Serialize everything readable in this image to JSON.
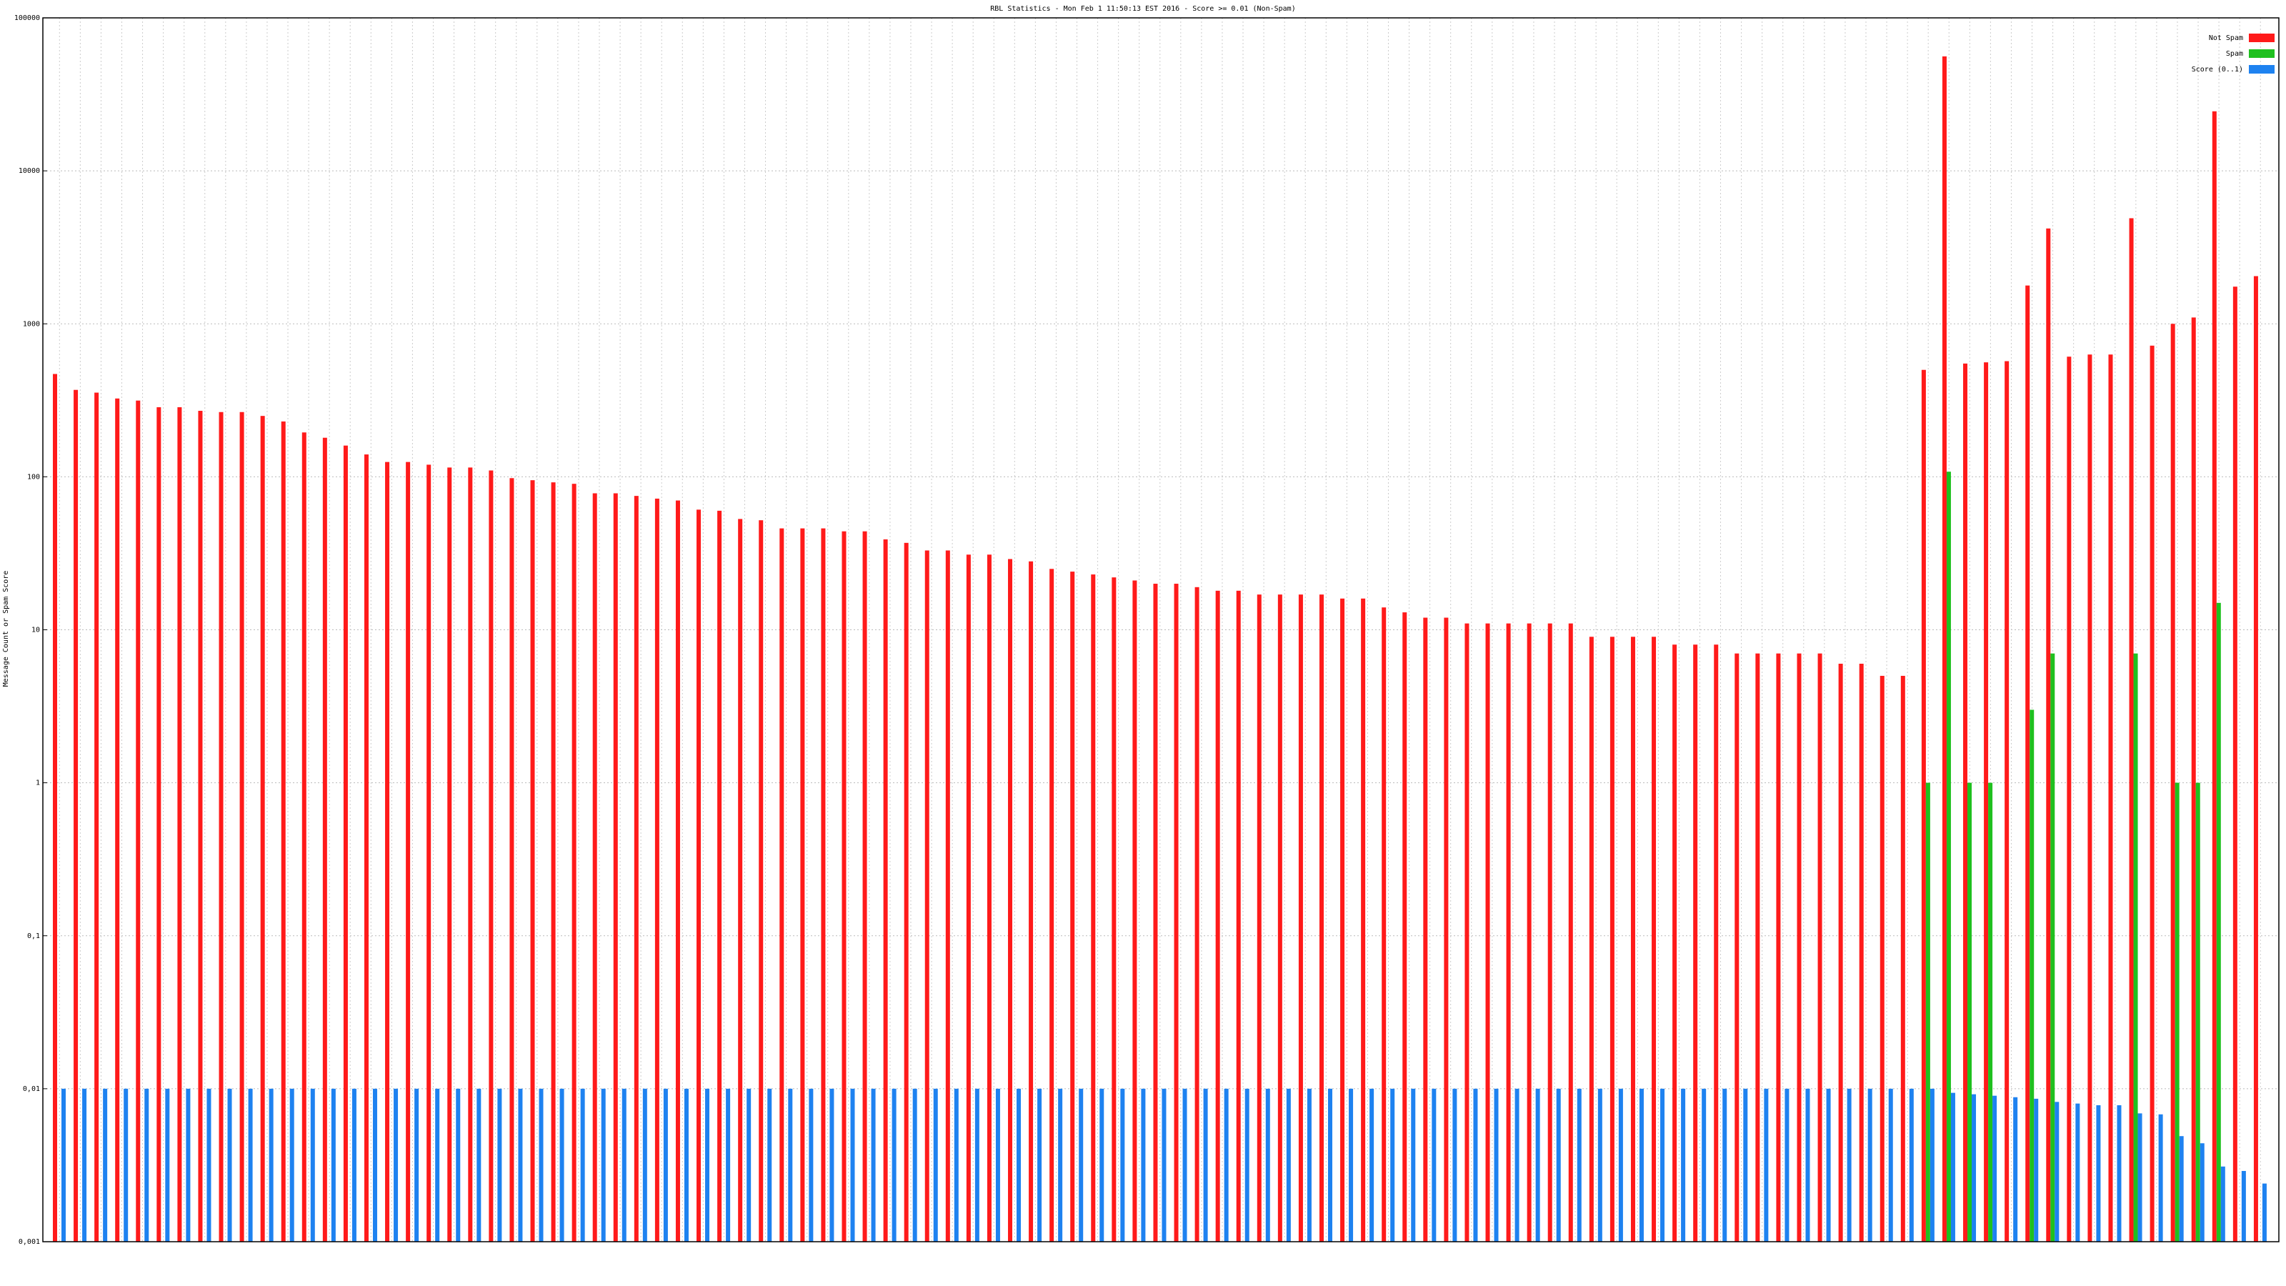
{
  "chart_data": {
    "type": "bar",
    "title": "RBL Statistics - Mon Feb  1 11:50:13 EST 2016 - Score >= 0.01 (Non-Spam)",
    "y_label": "Message Count or Spam Score",
    "log_scale": true,
    "grid": true,
    "legend": "top-right",
    "categories": [
      null,
      null,
      null,
      null,
      null,
      null,
      null,
      null,
      null,
      null,
      null,
      null,
      null,
      null,
      null,
      null,
      null,
      null,
      null,
      null,
      null,
      null,
      null,
      null,
      null,
      null,
      null,
      null,
      null,
      null,
      null,
      null,
      null,
      null,
      null,
      null,
      null,
      null,
      null,
      null,
      null,
      null,
      null,
      null,
      null,
      null,
      null,
      null,
      null,
      null,
      null,
      null,
      null,
      null,
      null,
      null,
      null,
      null,
      null,
      null,
      null,
      null,
      null,
      null,
      null,
      null,
      null,
      null,
      null,
      null,
      null,
      null,
      null,
      null,
      null,
      null,
      null,
      null,
      null,
      null,
      null,
      null,
      null,
      null,
      null,
      null,
      null,
      null,
      null,
      null,
      null,
      null,
      null,
      null,
      null,
      null,
      null,
      null,
      null,
      null,
      null,
      null,
      null,
      null,
      null,
      null,
      null
    ],
    "series": [
      {
        "name": "Not Spam",
        "color": "#ff1a1a",
        "values": [
          470,
          370,
          355,
          325,
          315,
          285,
          285,
          270,
          265,
          265,
          250,
          230,
          195,
          180,
          160,
          140,
          125,
          125,
          120,
          115,
          115,
          110,
          98,
          95,
          92,
          90,
          78,
          78,
          75,
          72,
          70,
          61,
          60,
          53,
          52,
          46,
          46,
          46,
          44,
          44,
          39,
          37,
          33,
          33,
          31,
          31,
          29,
          28,
          25,
          24,
          23,
          22,
          21,
          20,
          20,
          19,
          18,
          18,
          17,
          17,
          17,
          17,
          16,
          16,
          14,
          13,
          12,
          12,
          11,
          11,
          11,
          11,
          11,
          11,
          9,
          9,
          9,
          9,
          8,
          8,
          8,
          7,
          7,
          7,
          7,
          7,
          6,
          6,
          5,
          5,
          500,
          56000,
          550,
          560,
          570,
          1780,
          4200,
          610,
          630,
          630,
          4900,
          720,
          1000,
          1100,
          24500,
          1750,
          2050
        ]
      },
      {
        "name": "Spam",
        "color": "#1fc01f",
        "values": [
          null,
          null,
          null,
          null,
          null,
          null,
          null,
          null,
          null,
          null,
          null,
          null,
          null,
          null,
          null,
          null,
          null,
          null,
          null,
          null,
          null,
          null,
          null,
          null,
          null,
          null,
          null,
          null,
          null,
          null,
          null,
          null,
          null,
          null,
          null,
          null,
          null,
          null,
          null,
          null,
          null,
          null,
          null,
          null,
          null,
          null,
          null,
          null,
          null,
          null,
          null,
          null,
          null,
          null,
          null,
          null,
          null,
          null,
          null,
          null,
          null,
          null,
          null,
          null,
          null,
          null,
          null,
          null,
          null,
          null,
          null,
          null,
          null,
          null,
          null,
          null,
          null,
          null,
          null,
          null,
          null,
          null,
          null,
          null,
          null,
          null,
          null,
          null,
          null,
          null,
          1,
          108,
          1,
          1,
          null,
          3,
          7,
          null,
          null,
          null,
          7,
          null,
          1,
          1,
          15,
          null,
          null
        ]
      },
      {
        "name": "Score (0..1)",
        "color": "#1e82f0",
        "values": [
          0.01,
          0.01,
          0.01,
          0.01,
          0.01,
          0.01,
          0.01,
          0.01,
          0.01,
          0.01,
          0.01,
          0.01,
          0.01,
          0.01,
          0.01,
          0.01,
          0.01,
          0.01,
          0.01,
          0.01,
          0.01,
          0.01,
          0.01,
          0.01,
          0.01,
          0.01,
          0.01,
          0.01,
          0.01,
          0.01,
          0.01,
          0.01,
          0.01,
          0.01,
          0.01,
          0.01,
          0.01,
          0.01,
          0.01,
          0.01,
          0.01,
          0.01,
          0.01,
          0.01,
          0.01,
          0.01,
          0.01,
          0.01,
          0.01,
          0.01,
          0.01,
          0.01,
          0.01,
          0.01,
          0.01,
          0.01,
          0.01,
          0.01,
          0.01,
          0.01,
          0.01,
          0.01,
          0.01,
          0.01,
          0.01,
          0.01,
          0.01,
          0.01,
          0.01,
          0.01,
          0.01,
          0.01,
          0.01,
          0.01,
          0.01,
          0.01,
          0.01,
          0.01,
          0.01,
          0.01,
          0.01,
          0.01,
          0.01,
          0.01,
          0.01,
          0.01,
          0.01,
          0.01,
          0.01,
          0.01,
          0.01,
          0.0094,
          0.0092,
          0.009,
          0.0088,
          0.0086,
          0.0082,
          0.008,
          0.0078,
          0.0078,
          0.0069,
          0.0068,
          0.0049,
          0.0044,
          0.0031,
          0.0029,
          0.0024
        ]
      }
    ],
    "ylim": [
      0.001,
      100000
    ],
    "yticks": [
      {
        "value": 0.001,
        "label": "0,001"
      },
      {
        "value": 0.01,
        "label": "0,01"
      },
      {
        "value": 0.1,
        "label": "0,1"
      },
      1,
      10,
      100,
      1000,
      10000,
      100000
    ]
  }
}
